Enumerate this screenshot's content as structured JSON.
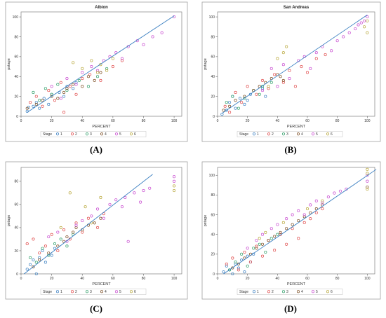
{
  "colors": {
    "regression_line": "#3a7fc1",
    "stage": [
      "#3a7fc1",
      "#e04a4a",
      "#2e9e68",
      "#7a4a1e",
      "#c84ad0",
      "#b8a73a"
    ]
  },
  "marker": "open-circle",
  "chart_data": [
    {
      "type": "scatter",
      "caption": "(A)",
      "title": "Albion",
      "xlabel": "PERCENT",
      "ylabel": "pstage",
      "xlim": [
        0,
        105
      ],
      "ylim": [
        0,
        105
      ],
      "xticks": [
        0,
        20,
        40,
        60,
        80,
        100
      ],
      "yticks": [
        0,
        20,
        40,
        60,
        80,
        100
      ],
      "regression_line": {
        "x": [
          4,
          100
        ],
        "y": [
          4,
          101
        ]
      },
      "legend": {
        "title": "Stage",
        "entries": [
          "1",
          "2",
          "3",
          "4",
          "5",
          "6"
        ],
        "position": "bottom"
      },
      "series": [
        {
          "name": "1",
          "x": [
            4,
            5,
            8,
            10,
            12,
            15,
            18,
            20,
            25,
            28,
            30,
            34,
            36
          ],
          "y": [
            5,
            9,
            10,
            14,
            8,
            18,
            12,
            22,
            24,
            20,
            30,
            28,
            34
          ]
        },
        {
          "name": "2",
          "x": [
            6,
            10,
            14,
            18,
            22,
            26,
            28,
            32,
            36,
            40,
            45,
            52,
            60,
            66
          ],
          "y": [
            14,
            20,
            10,
            26,
            16,
            34,
            4,
            30,
            22,
            38,
            42,
            36,
            50,
            56
          ]
        },
        {
          "name": "3",
          "x": [
            8,
            12,
            16,
            20,
            24,
            30,
            38,
            44,
            50,
            56
          ],
          "y": [
            24,
            16,
            28,
            22,
            32,
            26,
            36,
            30,
            40,
            48
          ]
        },
        {
          "name": "4",
          "x": [
            4,
            10,
            14,
            20,
            24,
            28,
            30,
            34,
            40,
            44,
            48,
            52
          ],
          "y": [
            8,
            12,
            16,
            20,
            18,
            24,
            28,
            32,
            30,
            40,
            36,
            44
          ]
        },
        {
          "name": "5",
          "x": [
            20,
            26,
            30,
            36,
            40,
            46,
            50,
            54,
            58,
            62,
            66,
            70,
            76,
            80,
            86,
            92,
            100
          ],
          "y": [
            30,
            18,
            38,
            32,
            44,
            50,
            46,
            56,
            60,
            64,
            58,
            70,
            76,
            72,
            80,
            84,
            100
          ]
        },
        {
          "name": "6",
          "x": [
            34,
            40,
            46,
            50,
            52,
            56,
            60
          ],
          "y": [
            54,
            48,
            56,
            44,
            52,
            46,
            58
          ]
        }
      ]
    },
    {
      "type": "scatter",
      "caption": "(B)",
      "title": "San Andreas",
      "xlabel": "PERCENT",
      "ylabel": "pstage",
      "xlim": [
        0,
        105
      ],
      "ylim": [
        0,
        105
      ],
      "xticks": [
        0,
        20,
        40,
        60,
        80,
        100
      ],
      "yticks": [
        0,
        20,
        40,
        60,
        80,
        100
      ],
      "regression_line": {
        "x": [
          3,
          100
        ],
        "y": [
          3,
          102
        ]
      },
      "legend": {
        "title": "Stage",
        "entries": [
          "1",
          "2",
          "3",
          "4",
          "5",
          "6"
        ],
        "position": "bottom"
      },
      "series": [
        {
          "name": "1",
          "x": [
            3,
            6,
            8,
            10,
            12,
            15,
            18,
            20,
            22,
            30,
            32
          ],
          "y": [
            2,
            6,
            14,
            20,
            8,
            18,
            12,
            16,
            22,
            28,
            20
          ]
        },
        {
          "name": "2",
          "x": [
            5,
            8,
            12,
            16,
            20,
            26,
            30,
            34,
            38,
            44,
            48,
            52,
            56,
            60,
            66,
            72
          ],
          "y": [
            10,
            4,
            24,
            14,
            30,
            22,
            36,
            28,
            42,
            34,
            46,
            30,
            50,
            44,
            58,
            62
          ]
        },
        {
          "name": "3",
          "x": [
            6,
            10,
            14,
            18,
            24,
            28,
            30,
            36
          ],
          "y": [
            14,
            20,
            8,
            18,
            26,
            22,
            30,
            34
          ]
        },
        {
          "name": "4",
          "x": [
            4,
            8,
            12,
            18,
            24,
            28,
            32,
            36,
            40,
            42,
            44
          ],
          "y": [
            6,
            10,
            16,
            20,
            26,
            30,
            34,
            38,
            42,
            40,
            36
          ]
        },
        {
          "name": "5",
          "x": [
            30,
            36,
            40,
            44,
            48,
            54,
            58,
            62,
            66,
            70,
            76,
            80,
            84,
            88,
            92,
            94,
            96,
            98,
            100
          ],
          "y": [
            26,
            48,
            30,
            52,
            38,
            56,
            60,
            48,
            64,
            70,
            66,
            76,
            80,
            84,
            88,
            92,
            94,
            96,
            100
          ]
        },
        {
          "name": "6",
          "x": [
            34,
            40,
            44,
            46,
            98,
            100,
            100
          ],
          "y": [
            30,
            58,
            64,
            70,
            90,
            96,
            84
          ]
        }
      ]
    },
    {
      "type": "scatter",
      "caption": "(C)",
      "title": "",
      "xlabel": "PERCENT",
      "ylabel": "pstage",
      "xlim": [
        0,
        105
      ],
      "ylim": [
        0,
        92
      ],
      "xticks": [
        0,
        20,
        40,
        60,
        80,
        100
      ],
      "yticks": [
        0,
        20,
        40,
        60,
        80
      ],
      "regression_line": {
        "x": [
          2,
          86
        ],
        "y": [
          0,
          86
        ]
      },
      "legend": {
        "title": "Stage",
        "entries": [
          "1",
          "2",
          "3",
          "4",
          "5",
          "6"
        ],
        "position": "bottom"
      },
      "series": [
        {
          "name": "1",
          "x": [
            4,
            6,
            8,
            10,
            12,
            14,
            16,
            20,
            22
          ],
          "y": [
            4,
            8,
            12,
            0,
            14,
            20,
            10,
            16,
            22
          ]
        },
        {
          "name": "2",
          "x": [
            4,
            8,
            12,
            16,
            20,
            24,
            28,
            32,
            36,
            40,
            44,
            50,
            54
          ],
          "y": [
            26,
            30,
            18,
            24,
            34,
            20,
            38,
            30,
            44,
            36,
            48,
            40,
            52
          ]
        },
        {
          "name": "3",
          "x": [
            6,
            10,
            14,
            18,
            22,
            26,
            30,
            34
          ],
          "y": [
            14,
            10,
            22,
            16,
            26,
            30,
            24,
            34
          ]
        },
        {
          "name": "4",
          "x": [
            8,
            12,
            18,
            24,
            28,
            30,
            34,
            36,
            40,
            44,
            48,
            52
          ],
          "y": [
            6,
            12,
            18,
            24,
            28,
            32,
            36,
            40,
            38,
            42,
            44,
            48
          ]
        },
        {
          "name": "5",
          "x": [
            18,
            24,
            30,
            36,
            40,
            46,
            50,
            54,
            58,
            62,
            66,
            68,
            70,
            74,
            78,
            80,
            84,
            100,
            100
          ],
          "y": [
            32,
            36,
            28,
            42,
            46,
            50,
            56,
            48,
            60,
            64,
            58,
            66,
            28,
            70,
            62,
            72,
            74,
            84,
            80
          ]
        },
        {
          "name": "6",
          "x": [
            26,
            32,
            42,
            46,
            52,
            100,
            100
          ],
          "y": [
            40,
            70,
            58,
            44,
            66,
            76,
            72
          ]
        }
      ]
    },
    {
      "type": "scatter",
      "caption": "(D)",
      "title": "",
      "xlabel": "PERCENT",
      "ylabel": "pstage",
      "xlim": [
        0,
        105
      ],
      "ylim": [
        0,
        108
      ],
      "xticks": [
        0,
        20,
        40,
        60,
        80,
        100
      ],
      "yticks": [
        0,
        20,
        40,
        60,
        80,
        100
      ],
      "regression_line": {
        "x": [
          4,
          106
        ],
        "y": [
          0,
          106
        ]
      },
      "legend": {
        "title": "Stage",
        "entries": [
          "1",
          "2",
          "3",
          "4",
          "5",
          "6"
        ],
        "position": "bottom"
      },
      "series": [
        {
          "name": "1",
          "x": [
            4,
            6,
            8,
            10,
            12,
            14,
            16,
            18,
            20,
            22,
            24
          ],
          "y": [
            2,
            8,
            4,
            0,
            10,
            6,
            14,
            2,
            18,
            12,
            20
          ]
        },
        {
          "name": "2",
          "x": [
            6,
            10,
            14,
            18,
            22,
            26,
            30,
            34,
            38,
            42,
            46,
            50,
            54,
            58,
            62,
            66,
            70
          ],
          "y": [
            10,
            16,
            4,
            22,
            12,
            28,
            18,
            34,
            24,
            40,
            30,
            46,
            36,
            52,
            56,
            62,
            66
          ]
        },
        {
          "name": "3",
          "x": [
            8,
            12,
            16,
            20,
            24,
            28,
            32,
            36,
            40
          ],
          "y": [
            4,
            12,
            20,
            8,
            26,
            30,
            22,
            36,
            40
          ]
        },
        {
          "name": "4",
          "x": [
            10,
            14,
            18,
            22,
            26,
            30,
            34,
            38,
            42,
            46,
            50,
            54,
            58,
            62,
            66,
            70,
            100
          ],
          "y": [
            6,
            10,
            16,
            20,
            26,
            30,
            34,
            38,
            42,
            46,
            50,
            54,
            58,
            62,
            66,
            70,
            88
          ]
        },
        {
          "name": "5",
          "x": [
            20,
            26,
            30,
            36,
            40,
            46,
            50,
            54,
            58,
            62,
            66,
            70,
            74,
            78,
            82,
            86,
            100,
            100
          ],
          "y": [
            26,
            34,
            40,
            46,
            50,
            56,
            60,
            64,
            60,
            70,
            74,
            72,
            78,
            82,
            84,
            86,
            100,
            94
          ]
        },
        {
          "name": "6",
          "x": [
            28,
            32,
            44,
            60,
            70,
            100,
            100,
            100
          ],
          "y": [
            36,
            42,
            52,
            66,
            74,
            106,
            102,
            86
          ]
        }
      ]
    }
  ]
}
